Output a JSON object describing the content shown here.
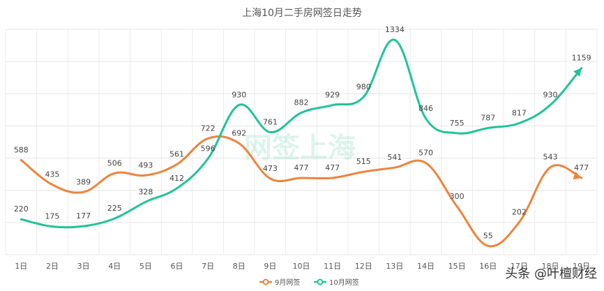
{
  "chart_data": {
    "type": "line",
    "title": "上海10月二手房网签日走势",
    "categories": [
      "1日",
      "2日",
      "3日",
      "4日",
      "5日",
      "6日",
      "7日",
      "8日",
      "9日",
      "10日",
      "11日",
      "12日",
      "13日",
      "14日",
      "15日",
      "16日",
      "17日",
      "18日",
      "19日"
    ],
    "series": [
      {
        "name": "9月网签",
        "color": "#f0833a",
        "values": [
          588,
          435,
          389,
          506,
          493,
          561,
          722,
          692,
          473,
          477,
          477,
          515,
          541,
          570,
          300,
          55,
          202,
          543,
          477
        ]
      },
      {
        "name": "10月网签",
        "color": "#1fc39a",
        "values": [
          220,
          175,
          177,
          225,
          328,
          412,
          596,
          930,
          761,
          882,
          929,
          980,
          1334,
          846,
          755,
          787,
          817,
          930,
          1159
        ]
      }
    ],
    "ylim": [
      0,
      1400
    ],
    "grid": true,
    "legend_position": "bottom-center",
    "xlabel": "",
    "ylabel": ""
  },
  "watermark": {
    "logo_text": "网签上海",
    "source_text": "头条 @叶檀财经"
  }
}
